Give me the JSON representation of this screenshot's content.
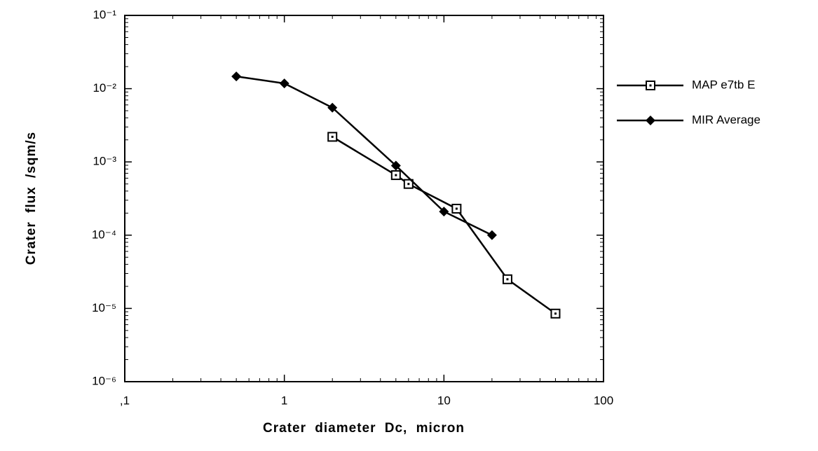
{
  "chart_data": {
    "type": "line",
    "xlabel": "Crater diameter Dc, micron",
    "ylabel": "Crater flux /sqm/s",
    "xscale": "log",
    "yscale": "log",
    "xlim": [
      0.1,
      100
    ],
    "xticks": [
      {
        "value": 0.1,
        "label": ",1"
      },
      1,
      10,
      100
    ],
    "ylim": [
      1e-06,
      0.1
    ],
    "yticks": [
      {
        "value": 0.1,
        "label": "10⁻¹"
      },
      {
        "value": 0.01,
        "label": "10⁻²"
      },
      {
        "value": 0.001,
        "label": "10⁻³"
      },
      {
        "value": 0.0001,
        "label": "10⁻⁴"
      },
      {
        "value": 1e-05,
        "label": "10⁻⁵"
      },
      {
        "value": 1e-06,
        "label": "10⁻⁶"
      }
    ],
    "legend": "right",
    "series": [
      {
        "name": "MAP e7tb E",
        "color": "#000000",
        "marker": "square",
        "x": [
          2,
          5,
          6,
          12,
          25,
          50
        ],
        "values": [
          0.0022,
          0.00066,
          0.0005,
          0.00023,
          2.5e-05,
          8.5e-06
        ]
      },
      {
        "name": "MIR Average",
        "color": "#000000",
        "marker": "diamond",
        "x": [
          0.5,
          1,
          2,
          5,
          10,
          20
        ],
        "values": [
          0.0147,
          0.0118,
          0.0055,
          0.00089,
          0.00021,
          0.0001
        ]
      }
    ]
  }
}
